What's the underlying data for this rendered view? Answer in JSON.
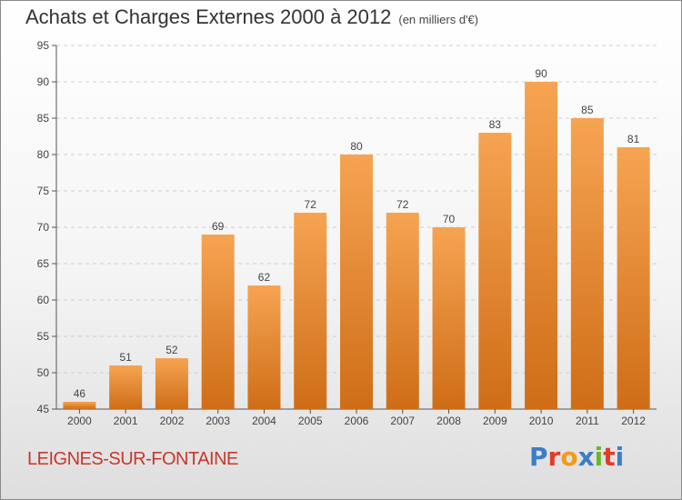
{
  "header": {
    "title": "Achats et Charges Externes 2000 à 2012",
    "unit": "(en milliers d'€)"
  },
  "footer": {
    "commune": "LEIGNES-SUR-FONTAINE",
    "logo": "Proxiti"
  },
  "colors": {
    "bar_top": "#f6a452",
    "bar_bottom": "#cf6d17",
    "commune_text": "#c8382a",
    "logo_letters": [
      "#3a7ec8",
      "#e23c2a",
      "#f29a1a",
      "#3a7ec8",
      "#6ab62e",
      "#e23c2a",
      "#3a7ec8"
    ]
  },
  "chart_data": {
    "type": "bar",
    "title": "Achats et Charges Externes 2000 à 2012",
    "subtitle": "(en milliers d'€)",
    "categories": [
      "2000",
      "2001",
      "2002",
      "2003",
      "2004",
      "2005",
      "2006",
      "2007",
      "2008",
      "2009",
      "2010",
      "2011",
      "2012"
    ],
    "values": [
      46,
      51,
      52,
      69,
      62,
      72,
      80,
      72,
      70,
      83,
      90,
      85,
      81
    ],
    "value_labels": [
      "46",
      "51",
      "52",
      "69",
      "62",
      "72",
      "80",
      "72",
      "70",
      "83",
      "90",
      "85",
      "81"
    ],
    "ylim": [
      45,
      95
    ],
    "yticks": [
      45,
      50,
      55,
      60,
      65,
      70,
      75,
      80,
      85,
      90,
      95
    ],
    "ytick_labels": [
      "45",
      "50",
      "55",
      "60",
      "65",
      "70",
      "75",
      "80",
      "85",
      "90",
      "95"
    ],
    "grid": true,
    "legend": "none"
  }
}
